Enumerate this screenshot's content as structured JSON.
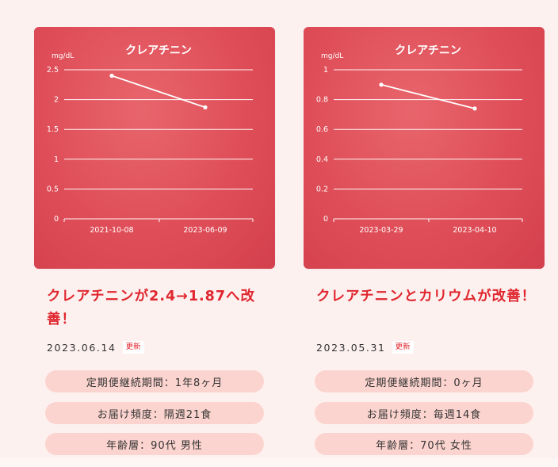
{
  "cards": [
    {
      "headline": "クレアチニンが2.4→1.87へ改善！",
      "date": "2023.06.14",
      "badge": "更新",
      "pills": [
        "定期便継続期間：1年8ヶ月",
        "お届け頻度：隔週21食",
        "年齢層：90代 男性"
      ]
    },
    {
      "headline": "クレアチニンとカリウムが改善！",
      "date": "2023.05.31",
      "badge": "更新",
      "pills": [
        "定期便継続期間：0ヶ月",
        "お届け頻度：毎週14食",
        "年齢層：70代 女性"
      ]
    }
  ],
  "chart_data": [
    {
      "type": "line",
      "title": "クレアチニン",
      "ylabel": "mg/dL",
      "ylim": [
        0,
        2.5
      ],
      "yticks": [
        "0",
        "0.5",
        "1",
        "1.5",
        "2",
        "2.5"
      ],
      "categories": [
        "2021-10-08",
        "2023-06-09"
      ],
      "series": [
        {
          "values": [
            2.4,
            1.87
          ]
        }
      ],
      "grid": true,
      "colors": {
        "line": "#ffffff",
        "grid": "#ffffff"
      }
    },
    {
      "type": "line",
      "title": "クレアチニン",
      "ylabel": "mg/dL",
      "ylim": [
        0,
        1
      ],
      "yticks": [
        "0",
        "0.2",
        "0.4",
        "0.6",
        "0.8",
        "1"
      ],
      "categories": [
        "2023-03-29",
        "2023-04-10"
      ],
      "series": [
        {
          "values": [
            0.9,
            0.74
          ]
        }
      ],
      "grid": true,
      "colors": {
        "line": "#ffffff",
        "grid": "#ffffff"
      }
    }
  ]
}
